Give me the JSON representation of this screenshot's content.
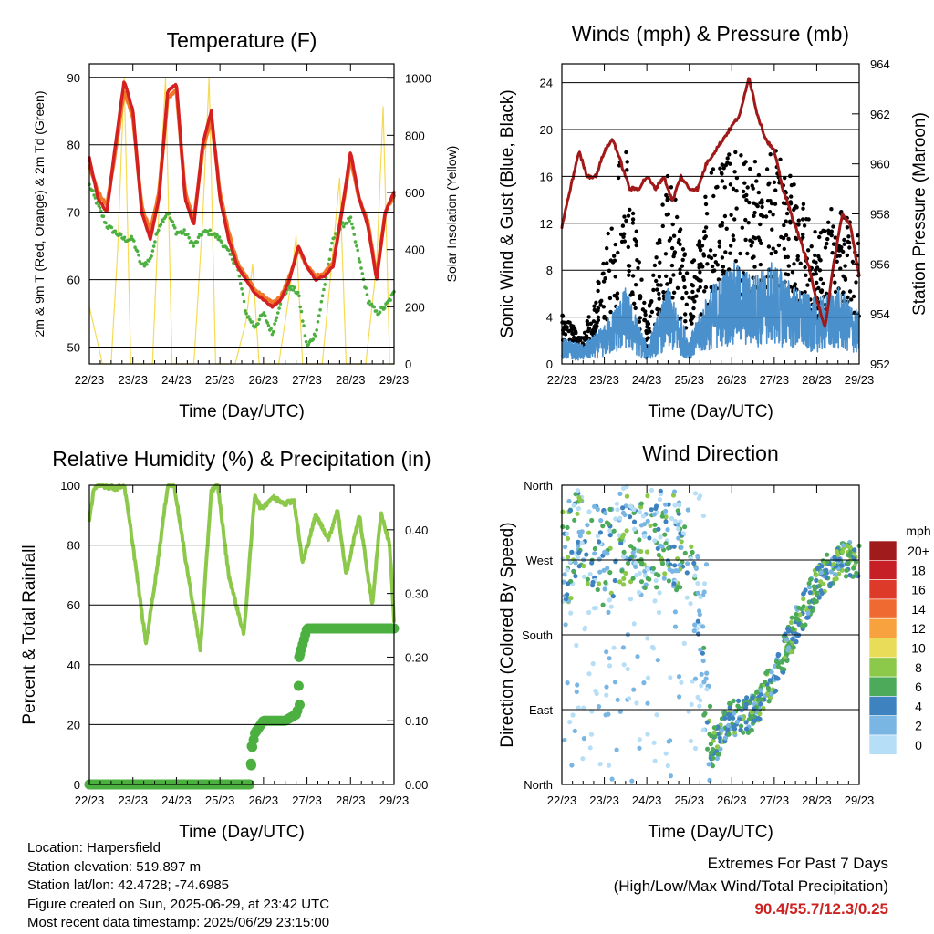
{
  "chart_data": [
    {
      "type": "line",
      "title": "Temperature (F)",
      "xlabel": "Time (Day/UTC)",
      "ylabel": "2m & 9m T (Red, Orange) & 2m Td (Green)",
      "ylabel_right": "Solar Insolation (Yellow)",
      "x_ticks": [
        "22/23",
        "23/23",
        "24/23",
        "25/23",
        "26/23",
        "27/23",
        "28/23",
        "29/23"
      ],
      "y_ticks": [
        50,
        60,
        70,
        80,
        90
      ],
      "y2_ticks": [
        0,
        200,
        400,
        600,
        800,
        1000
      ],
      "ylim": [
        47.5,
        92
      ],
      "y2lim": [
        0,
        1050
      ],
      "grid": "horizontal",
      "colors": {
        "t2m": "#d42020",
        "t9m": "#f07828",
        "td2m": "#4cb040",
        "solar": "#f5d84a"
      },
      "series": [
        {
          "key": "t2m",
          "x": [
            22,
            22.2,
            22.4,
            22.6,
            22.8,
            23,
            23.2,
            23.4,
            23.6,
            23.8,
            24,
            24.2,
            24.4,
            24.6,
            24.8,
            25,
            25.2,
            25.4,
            25.6,
            25.8,
            26,
            26.2,
            26.4,
            26.6,
            26.8,
            27,
            27.2,
            27.4,
            27.6,
            27.8,
            28,
            28.2,
            28.4,
            28.6,
            28.8,
            29
          ],
          "y": [
            78,
            72,
            70,
            80,
            89.5,
            85,
            70,
            66,
            72,
            88,
            89,
            72,
            68,
            80,
            85,
            72,
            66,
            62,
            60,
            58,
            57,
            56,
            57,
            60,
            65,
            62,
            60,
            60.5,
            62,
            70,
            79,
            72,
            68,
            60,
            70,
            73
          ]
        },
        {
          "key": "t9m",
          "x": [
            22,
            22.2,
            22.4,
            22.6,
            22.8,
            23,
            23.2,
            23.4,
            23.6,
            23.8,
            24,
            24.2,
            24.4,
            24.6,
            24.8,
            25,
            25.2,
            25.4,
            25.6,
            25.8,
            26,
            26.2,
            26.4,
            26.6,
            26.8,
            27,
            27.2,
            27.4,
            27.6,
            27.8,
            28,
            28.2,
            28.4,
            28.6,
            28.8,
            29
          ],
          "y": [
            77,
            73,
            71,
            79,
            88,
            84,
            71,
            67,
            73,
            87,
            88,
            73,
            69,
            79,
            84,
            73,
            67,
            62.5,
            60.5,
            58.5,
            57.5,
            56.5,
            57.5,
            60.5,
            64.5,
            62,
            60.5,
            61,
            62.5,
            70,
            78,
            72,
            68.5,
            60.5,
            70,
            72.5
          ]
        },
        {
          "key": "td2m",
          "x": [
            22,
            22.2,
            22.4,
            22.6,
            22.8,
            23,
            23.2,
            23.4,
            23.6,
            23.8,
            24,
            24.2,
            24.4,
            24.6,
            24.8,
            25,
            25.2,
            25.4,
            25.6,
            25.8,
            26,
            26.2,
            26.4,
            26.6,
            26.8,
            27,
            27.2,
            27.4,
            27.6,
            27.8,
            28,
            28.2,
            28.4,
            28.6,
            28.8,
            29
          ],
          "y": [
            74,
            71,
            68,
            67,
            66,
            66,
            62,
            63,
            68,
            70,
            67,
            67,
            65,
            67,
            67,
            66,
            64,
            62,
            55,
            53,
            55,
            52,
            57,
            59,
            58,
            50,
            52,
            59,
            66,
            68,
            69,
            63,
            57,
            55,
            56,
            58
          ]
        },
        {
          "key": "solar",
          "x": [
            22,
            22.3,
            22.5,
            22.65,
            22.8,
            22.95,
            23.2,
            23.45,
            23.6,
            23.75,
            23.9,
            24.1,
            24.4,
            24.6,
            24.75,
            24.9,
            25.1,
            25.35,
            25.6,
            25.75,
            25.9,
            26.1,
            26.35,
            26.6,
            26.75,
            26.9,
            27.1,
            27.35,
            27.6,
            27.75,
            27.9,
            28.1,
            28.35,
            28.6,
            28.75,
            28.9,
            29
          ],
          "y": [
            200,
            0,
            0,
            400,
            1000,
            0,
            0,
            0,
            550,
            1000,
            0,
            0,
            0,
            500,
            1000,
            0,
            0,
            0,
            150,
            350,
            0,
            0,
            0,
            250,
            450,
            0,
            0,
            0,
            400,
            650,
            0,
            0,
            0,
            350,
            900,
            0,
            0
          ]
        }
      ]
    },
    {
      "type": "scatter",
      "title": "Winds (mph) & Pressure (mb)",
      "xlabel": "Time (Day/UTC)",
      "ylabel": "Sonic Wind & Gust (Blue, Black)",
      "ylabel_right": "Station Pressure (Maroon)",
      "x_ticks": [
        "22/23",
        "23/23",
        "24/23",
        "25/23",
        "26/23",
        "27/23",
        "28/23",
        "29/23"
      ],
      "y_ticks": [
        0,
        4,
        8,
        12,
        16,
        20,
        24
      ],
      "y2_ticks": [
        952,
        954,
        956,
        958,
        960,
        962,
        964
      ],
      "ylim": [
        0,
        25.6
      ],
      "y2lim": [
        952,
        964
      ],
      "grid": "horizontal",
      "colors": {
        "wind": "#4a90cc",
        "gust": "#000000",
        "pressure": "#a01818"
      },
      "series": [
        {
          "key": "wind_envelope",
          "x": [
            22,
            22.5,
            23,
            23.5,
            24,
            24.5,
            25,
            25.5,
            26,
            26.5,
            27,
            27.5,
            28,
            28.5,
            29
          ],
          "y": [
            2,
            1.5,
            3,
            6,
            1.5,
            6,
            2,
            6,
            8,
            7,
            8,
            6,
            5,
            6,
            4
          ]
        },
        {
          "key": "gust_envelope",
          "x": [
            22,
            22.5,
            23,
            23.5,
            24,
            24.5,
            25,
            25.5,
            26,
            26.5,
            27,
            27.5,
            28,
            28.5,
            29
          ],
          "y": [
            4,
            2,
            9,
            18,
            3,
            16,
            7,
            15,
            17,
            16,
            17,
            14,
            10,
            13,
            10
          ]
        },
        {
          "key": "pressure",
          "x": [
            22,
            22.2,
            22.4,
            22.6,
            22.8,
            23,
            23.2,
            23.4,
            23.6,
            23.8,
            24,
            24.2,
            24.4,
            24.6,
            24.8,
            25,
            25.2,
            25.4,
            25.6,
            25.8,
            26,
            26.2,
            26.4,
            26.6,
            26.8,
            27,
            27.2,
            27.4,
            27.6,
            27.8,
            28,
            28.2,
            28.4,
            28.6,
            28.8,
            29
          ],
          "y": [
            957.5,
            959,
            960.5,
            959.5,
            959.5,
            960.5,
            961,
            960,
            959,
            959,
            959.5,
            959,
            959.5,
            958.5,
            959.5,
            959,
            959,
            960,
            960.5,
            961,
            961.5,
            962,
            963.5,
            962,
            961,
            960.5,
            959,
            958,
            957,
            956,
            954.5,
            953.5,
            956,
            958,
            957.5,
            955.5
          ]
        }
      ]
    },
    {
      "type": "line",
      "title": "Relative Humidity (%) & Precipitation (in)",
      "xlabel": "Time (Day/UTC)",
      "ylabel": "Percent & Total Rainfall",
      "x_ticks": [
        "22/23",
        "23/23",
        "24/23",
        "25/23",
        "26/23",
        "27/23",
        "28/23",
        "29/23"
      ],
      "y_ticks": [
        0,
        20,
        40,
        60,
        80,
        100
      ],
      "y2_ticks": [
        "0.00",
        "0.10",
        "0.20",
        "0.30",
        "0.40"
      ],
      "ylim": [
        0,
        100
      ],
      "y2lim": [
        0,
        0.47
      ],
      "grid": "horizontal",
      "colors": {
        "rh": "#8cc84a",
        "precip": "#4cb040"
      },
      "series": [
        {
          "key": "rh",
          "x": [
            22,
            22.1,
            22.3,
            22.6,
            22.8,
            23,
            23.3,
            23.55,
            23.8,
            23.95,
            24.2,
            24.55,
            24.8,
            24.95,
            25.2,
            25.55,
            25.8,
            25.95,
            26.2,
            26.5,
            26.7,
            26.9,
            27.2,
            27.5,
            27.7,
            27.9,
            28.2,
            28.5,
            28.7,
            28.9,
            29
          ],
          "y": [
            88,
            99,
            100,
            99,
            100,
            80,
            47,
            72,
            100,
            100,
            76,
            45,
            98,
            100,
            70,
            50,
            97,
            92,
            96,
            94,
            95,
            74,
            90,
            82,
            92,
            70,
            90,
            60,
            91,
            80,
            55
          ]
        },
        {
          "key": "precip",
          "x": [
            22,
            25.7,
            25.72,
            25.8,
            26,
            26.5,
            26.75,
            26.8,
            26.82,
            27,
            29
          ],
          "y": [
            0,
            0,
            0.05,
            0.08,
            0.1,
            0.1,
            0.11,
            0.12,
            0.2,
            0.245,
            0.245
          ]
        }
      ]
    },
    {
      "type": "scatter",
      "title": "Wind Direction",
      "xlabel": "Time (Day/UTC)",
      "ylabel": "Direction (Colored By Speed)",
      "x_ticks": [
        "22/23",
        "23/23",
        "24/23",
        "25/23",
        "26/23",
        "27/23",
        "28/23",
        "29/23"
      ],
      "y_ticks": [
        "North",
        "East",
        "South",
        "West",
        "North"
      ],
      "ylim": [
        0,
        360
      ],
      "grid": "horizontal",
      "colorbar": {
        "title": "mph",
        "labels": [
          "20+",
          "18",
          "16",
          "14",
          "12",
          "10",
          "8",
          "6",
          "4",
          "2",
          "0"
        ],
        "colors": [
          "#a01c1c",
          "#c62026",
          "#de3a2a",
          "#ee6a30",
          "#f7a23f",
          "#e8dc58",
          "#8cc84a",
          "#4caa5a",
          "#3e82c0",
          "#7ab6e4",
          "#b6def6"
        ]
      },
      "series": [
        {
          "key": "direction_trend",
          "x": [
            22,
            22.5,
            23,
            23.5,
            24,
            24.5,
            25,
            25.5,
            26,
            26.5,
            27,
            27.5,
            28,
            28.5,
            29
          ],
          "y": [
            270,
            300,
            270,
            300,
            290,
            300,
            280,
            40,
            80,
            85,
            130,
            190,
            240,
            270,
            270
          ]
        }
      ]
    }
  ],
  "info": {
    "location": "Location: Harpersfield",
    "elevation": "Station elevation: 519.897 m",
    "latlon": "Station lat/lon: 42.4728; -74.6985",
    "created": "Figure created on Sun, 2025-06-29, at 23:42 UTC",
    "latest": "Most recent data timestamp: 2025/06/29 23:15:00"
  },
  "extremes": {
    "title": "Extremes For Past 7 Days",
    "subtitle": "(High/Low/Max Wind/Total Precipitation)",
    "values": "90.4/55.7/12.3/0.25"
  }
}
